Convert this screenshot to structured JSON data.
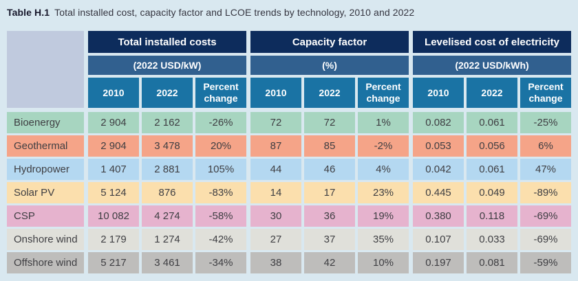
{
  "title": {
    "label": "Table H.1",
    "text": "Total installed cost, capacity factor and LCOE trends by technology, 2010 and 2022"
  },
  "colors": {
    "page_background": "#d9e8f0",
    "group_header": "#0d2c5c",
    "unit_header": "#31608f",
    "year_header": "#1a73a4",
    "corner_cell": "#c0cade",
    "cell_text": "#3e3e42",
    "header_text": "#ffffff"
  },
  "table": {
    "groups": [
      {
        "title": "Total installed costs",
        "unit": "(2022 USD/kW)",
        "columns": [
          "2010",
          "2022",
          "Percent change"
        ]
      },
      {
        "title": "Capacity factor",
        "unit": "(%)",
        "columns": [
          "2010",
          "2022",
          "Percent change"
        ]
      },
      {
        "title": "Levelised cost of electricity",
        "unit": "(2022 USD/kWh)",
        "columns": [
          "2010",
          "2022",
          "Percent change"
        ]
      }
    ],
    "rows": [
      {
        "label": "Bioenergy",
        "color": "#a7d5c0",
        "values": [
          "2 904",
          "2 162",
          "-26%",
          "72",
          "72",
          "1%",
          "0.082",
          "0.061",
          "-25%"
        ]
      },
      {
        "label": "Geothermal",
        "color": "#f5a488",
        "values": [
          "2 904",
          "3 478",
          "20%",
          "87",
          "85",
          "-2%",
          "0.053",
          "0.056",
          "6%"
        ]
      },
      {
        "label": "Hydropower",
        "color": "#b4d8f1",
        "values": [
          "1 407",
          "2 881",
          "105%",
          "44",
          "46",
          "4%",
          "0.042",
          "0.061",
          "47%"
        ]
      },
      {
        "label": "Solar PV",
        "color": "#fbdfad",
        "values": [
          "5 124",
          "876",
          "-83%",
          "14",
          "17",
          "23%",
          "0.445",
          "0.049",
          "-89%"
        ]
      },
      {
        "label": "CSP",
        "color": "#e6b3ce",
        "values": [
          "10 082",
          "4 274",
          "-58%",
          "30",
          "36",
          "19%",
          "0.380",
          "0.118",
          "-69%"
        ]
      },
      {
        "label": "Onshore wind",
        "color": "#e0e0da",
        "values": [
          "2 179",
          "1 274",
          "-42%",
          "27",
          "37",
          "35%",
          "0.107",
          "0.033",
          "-69%"
        ]
      },
      {
        "label": "Offshore wind",
        "color": "#bebdbb",
        "values": [
          "5 217",
          "3 461",
          "-34%",
          "38",
          "42",
          "10%",
          "0.197",
          "0.081",
          "-59%"
        ]
      }
    ]
  },
  "chart_data": {
    "type": "table",
    "title": "Total installed cost, capacity factor and LCOE trends by technology, 2010 and 2022",
    "column_groups": [
      "Total installed costs (2022 USD/kW)",
      "Capacity factor (%)",
      "Levelised cost of electricity (2022 USD/kWh)"
    ],
    "columns": [
      "2010",
      "2022",
      "Percent change"
    ],
    "rows": [
      {
        "technology": "Bioenergy",
        "installed_cost": [
          2904,
          2162,
          "-26%"
        ],
        "capacity_factor": [
          72,
          72,
          "1%"
        ],
        "lcoe": [
          0.082,
          0.061,
          "-25%"
        ]
      },
      {
        "technology": "Geothermal",
        "installed_cost": [
          2904,
          3478,
          "20%"
        ],
        "capacity_factor": [
          87,
          85,
          "-2%"
        ],
        "lcoe": [
          0.053,
          0.056,
          "6%"
        ]
      },
      {
        "technology": "Hydropower",
        "installed_cost": [
          1407,
          2881,
          "105%"
        ],
        "capacity_factor": [
          44,
          46,
          "4%"
        ],
        "lcoe": [
          0.042,
          0.061,
          "47%"
        ]
      },
      {
        "technology": "Solar PV",
        "installed_cost": [
          5124,
          876,
          "-83%"
        ],
        "capacity_factor": [
          14,
          17,
          "23%"
        ],
        "lcoe": [
          0.445,
          0.049,
          "-89%"
        ]
      },
      {
        "technology": "CSP",
        "installed_cost": [
          10082,
          4274,
          "-58%"
        ],
        "capacity_factor": [
          30,
          36,
          "19%"
        ],
        "lcoe": [
          0.38,
          0.118,
          "-69%"
        ]
      },
      {
        "technology": "Onshore wind",
        "installed_cost": [
          2179,
          1274,
          "-42%"
        ],
        "capacity_factor": [
          27,
          37,
          "35%"
        ],
        "lcoe": [
          0.107,
          0.033,
          "-69%"
        ]
      },
      {
        "technology": "Offshore wind",
        "installed_cost": [
          5217,
          3461,
          "-34%"
        ],
        "capacity_factor": [
          38,
          42,
          "10%"
        ],
        "lcoe": [
          0.197,
          0.081,
          "-59%"
        ]
      }
    ]
  }
}
